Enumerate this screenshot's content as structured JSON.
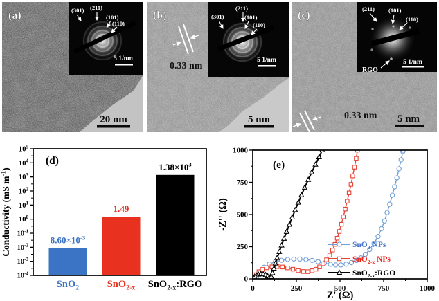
{
  "figure": {
    "panel_a": {
      "label": "(a)",
      "scale_bar": "20 nm",
      "inset": {
        "labels": [
          "(301)",
          "(211)",
          "(101)",
          "(110)"
        ],
        "scale_label": "5 1/nm"
      }
    },
    "panel_b": {
      "label": "(b)",
      "lattice_annotation": "0.33 nm",
      "scale_bar": "5 nm",
      "inset": {
        "labels": [
          "(211)",
          "(301)",
          "(101)",
          "(110)"
        ],
        "scale_label": "5 1/nm"
      }
    },
    "panel_c": {
      "label": "(c)",
      "lattice_annotation": "0.33 nm",
      "scale_bar": "5 nm",
      "inset": {
        "labels": [
          "(211)",
          "(101)",
          "(110)"
        ],
        "rgo_label": "RGO",
        "scale_label": "5 1/nm"
      }
    },
    "panel_d": {
      "label": "(d)"
    },
    "panel_e": {
      "label": "(e)"
    }
  },
  "chart_data": [
    {
      "type": "bar",
      "panel": "d",
      "ylabel": "Conductivity (mS m⁻¹)",
      "yscale": "log",
      "ylim": [
        0.0001,
        100000.0
      ],
      "ytick_labels": [
        "10⁵",
        "10⁴",
        "10³",
        "10²",
        "10¹",
        "10⁰",
        "10⁻¹",
        "10⁻²",
        "10⁻³",
        "10⁻⁴"
      ],
      "categories": [
        "SnO₂",
        "SnO₂₋ₓ",
        "SnO₂₋ₓ:RGO"
      ],
      "values": [
        0.0086,
        1.49,
        1380
      ],
      "value_labels": [
        "8.60×10⁻³",
        "1.49",
        "1.38×10³"
      ],
      "bar_colors": [
        "#3b74c4",
        "#e8311f",
        "#000000"
      ],
      "label_colors": [
        "#3b74c4",
        "#e8311f",
        "#000000"
      ],
      "legend": "none",
      "grid": false
    },
    {
      "type": "line",
      "subtype": "Nyquist EIS scatter-line",
      "panel": "e",
      "xlabel": "Z' (Ω)",
      "ylabel": "-Z'' (Ω)",
      "xlim": [
        0,
        1000
      ],
      "ylim": [
        0,
        1000
      ],
      "xticks": [
        0,
        250,
        500,
        750,
        1000
      ],
      "yticks": [
        0,
        250,
        500,
        750,
        1000
      ],
      "grid": false,
      "legend_position": "lower right",
      "series": [
        {
          "name": "SnO₂ NPs",
          "color": "#6f9ed8",
          "label_color": "#4273c8",
          "marker": "circle",
          "points": [
            [
              20,
              8
            ],
            [
              40,
              55
            ],
            [
              65,
              90
            ],
            [
              95,
              115
            ],
            [
              130,
              133
            ],
            [
              165,
              144
            ],
            [
              200,
              151
            ],
            [
              235,
              154
            ],
            [
              270,
              154
            ],
            [
              305,
              150
            ],
            [
              340,
              143
            ],
            [
              375,
              133
            ],
            [
              410,
              122
            ],
            [
              445,
              113
            ],
            [
              475,
              108
            ],
            [
              505,
              108
            ],
            [
              535,
              114
            ],
            [
              565,
              126
            ],
            [
              595,
              143
            ],
            [
              620,
              163
            ],
            [
              645,
              190
            ],
            [
              670,
              228
            ],
            [
              695,
              275
            ],
            [
              718,
              330
            ],
            [
              738,
              390
            ],
            [
              755,
              450
            ],
            [
              770,
              515
            ],
            [
              785,
              580
            ],
            [
              800,
              650
            ],
            [
              813,
              715
            ],
            [
              826,
              785
            ],
            [
              838,
              855
            ],
            [
              850,
              925
            ],
            [
              860,
              990
            ],
            [
              862,
              1000
            ]
          ]
        },
        {
          "name": "SnO₂₋ₓ NPs",
          "color": "#e64334",
          "label_color": "#e8251c",
          "marker": "square",
          "points": [
            [
              8,
              5
            ],
            [
              20,
              32
            ],
            [
              35,
              55
            ],
            [
              55,
              73
            ],
            [
              80,
              86
            ],
            [
              110,
              93
            ],
            [
              140,
              95
            ],
            [
              170,
              92
            ],
            [
              200,
              85
            ],
            [
              230,
              75
            ],
            [
              260,
              64
            ],
            [
              290,
              57
            ],
            [
              315,
              56
            ],
            [
              340,
              63
            ],
            [
              362,
              75
            ],
            [
              383,
              93
            ],
            [
              403,
              117
            ],
            [
              423,
              148
            ],
            [
              441,
              184
            ],
            [
              457,
              224
            ],
            [
              471,
              268
            ],
            [
              484,
              316
            ],
            [
              496,
              368
            ],
            [
              508,
              424
            ],
            [
              519,
              482
            ],
            [
              530,
              542
            ],
            [
              541,
              604
            ],
            [
              552,
              668
            ],
            [
              563,
              734
            ],
            [
              573,
              800
            ],
            [
              583,
              868
            ],
            [
              593,
              936
            ],
            [
              600,
              1000
            ]
          ]
        },
        {
          "name": "SnO₂₋ₓ:RGO",
          "color": "#000000",
          "label_color": "#000000",
          "marker": "triangle",
          "points": [
            [
              4,
              2
            ],
            [
              10,
              14
            ],
            [
              20,
              26
            ],
            [
              32,
              34
            ],
            [
              46,
              38
            ],
            [
              60,
              36
            ],
            [
              74,
              30
            ],
            [
              86,
              20
            ],
            [
              95,
              10
            ],
            [
              100,
              4
            ],
            [
              106,
              16
            ],
            [
              113,
              45
            ],
            [
              121,
              80
            ],
            [
              130,
              120
            ],
            [
              140,
              163
            ],
            [
              152,
              210
            ],
            [
              165,
              260
            ],
            [
              179,
              312
            ],
            [
              194,
              366
            ],
            [
              210,
              422
            ],
            [
              226,
              478
            ],
            [
              243,
              535
            ],
            [
              261,
              593
            ],
            [
              279,
              651
            ],
            [
              298,
              710
            ],
            [
              318,
              770
            ],
            [
              338,
              829
            ],
            [
              359,
              888
            ],
            [
              380,
              946
            ],
            [
              398,
              1000
            ]
          ]
        }
      ]
    }
  ]
}
